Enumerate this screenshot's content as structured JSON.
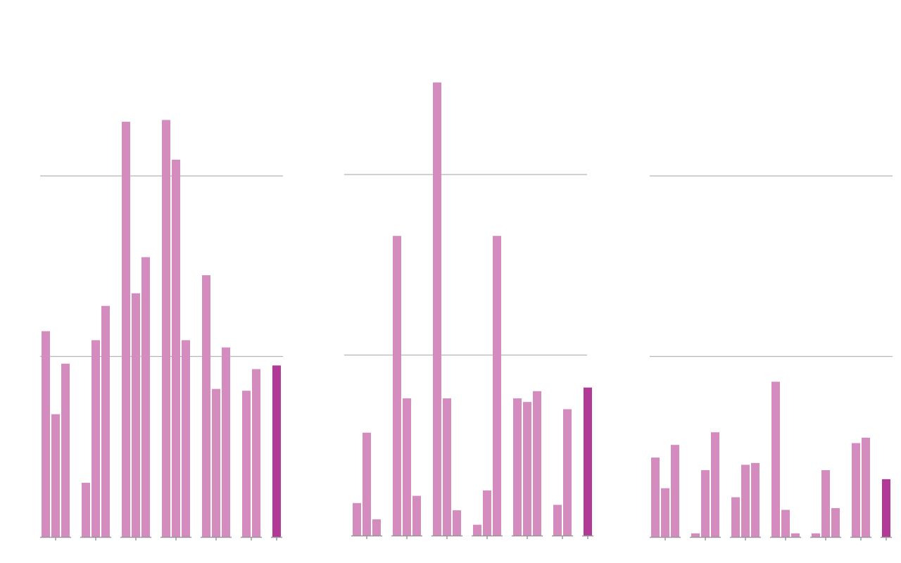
{
  "chart_data": [
    {
      "type": "grouped-bar",
      "ylim": [
        0,
        3
      ],
      "yticks": [
        0,
        1,
        2
      ],
      "grid": true,
      "color": "#d48bbd",
      "highlight_color": "#b03a96",
      "highlight_groups": [
        6
      ],
      "groups": [
        [
          1.14,
          0.68,
          0.96
        ],
        [
          0.3,
          1.09,
          1.28
        ],
        [
          2.3,
          1.35,
          1.55
        ],
        [
          2.31,
          2.09,
          1.09
        ],
        [
          1.45,
          0.82,
          1.05
        ],
        [
          0.81,
          0.93
        ],
        [
          0.95
        ]
      ]
    },
    {
      "type": "grouped-bar",
      "ylim": [
        0,
        3
      ],
      "yticks": [
        0,
        1,
        2
      ],
      "grid": true,
      "color": "#d48bbd",
      "highlight_color": "#b03a96",
      "highlight_groups": [
        6
      ],
      "groups": [
        [
          0.18,
          0.57,
          0.09
        ],
        [
          1.66,
          0.76,
          0.22
        ],
        [
          2.51,
          0.76,
          0.14
        ],
        [
          0.06,
          0.25,
          1.66
        ],
        [
          0.76,
          0.74,
          0.8
        ],
        [
          0.17,
          0.7
        ],
        [
          0.82
        ]
      ]
    },
    {
      "type": "grouped-bar",
      "ylim": [
        0,
        3
      ],
      "yticks": [
        0,
        1,
        2
      ],
      "grid": true,
      "color": "#d48bbd",
      "highlight_color": "#b03a96",
      "highlight_groups": [
        6
      ],
      "groups": [
        [
          0.44,
          0.27,
          0.51
        ],
        [
          0.02,
          0.37,
          0.58
        ],
        [
          0.22,
          0.4,
          0.41
        ],
        [
          0.86,
          0.15,
          0.02
        ],
        [
          0.02,
          0.37,
          0.16
        ],
        [
          0.52,
          0.55
        ],
        [
          0.32
        ]
      ]
    }
  ]
}
